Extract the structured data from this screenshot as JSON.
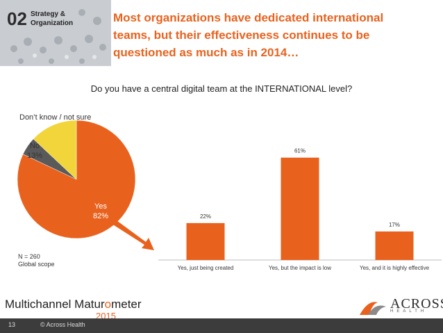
{
  "header": {
    "section_number": "02",
    "section_label_line1": "Strategy &",
    "section_label_line2": "Organization",
    "headline_line1": "Most organizations have dedicated international",
    "headline_line2": "teams, but their effectiveness continues to be",
    "headline_line3": "questioned as much as in 2014…"
  },
  "question": "Do you have a central digital team at the INTERNATIONAL level?",
  "chart_data": [
    {
      "type": "pie",
      "slices": [
        {
          "label": "Yes",
          "value": 82,
          "display": "82%",
          "color": "#e8621e"
        },
        {
          "label": "Don’t know / not sure",
          "value": 5,
          "display": "5%",
          "color": "#5a5a5a"
        },
        {
          "label": "No",
          "value": 13,
          "display": "13%",
          "color": "#f2d43b"
        }
      ]
    },
    {
      "type": "bar",
      "categories": [
        "Yes, just being created",
        "Yes, but the impact is low",
        "Yes, and it is highly effective"
      ],
      "values": [
        22,
        61,
        17
      ],
      "value_labels": [
        "22%",
        "61%",
        "17%"
      ],
      "bar_color": "#e8621e",
      "ylim": [
        0,
        70
      ]
    }
  ],
  "note_line1": "N = 260",
  "note_line2": "Global scope",
  "footer": {
    "brand_left": "Multichannel Matur",
    "brand_right": "meter",
    "brand_year": "2015",
    "logo_name": "ACROSS",
    "logo_sub": "HEALTH",
    "page_number": "13",
    "copyright": "© Across Health"
  },
  "colors": {
    "accent": "#e8621e",
    "footer_bg": "#3c3c3c"
  }
}
